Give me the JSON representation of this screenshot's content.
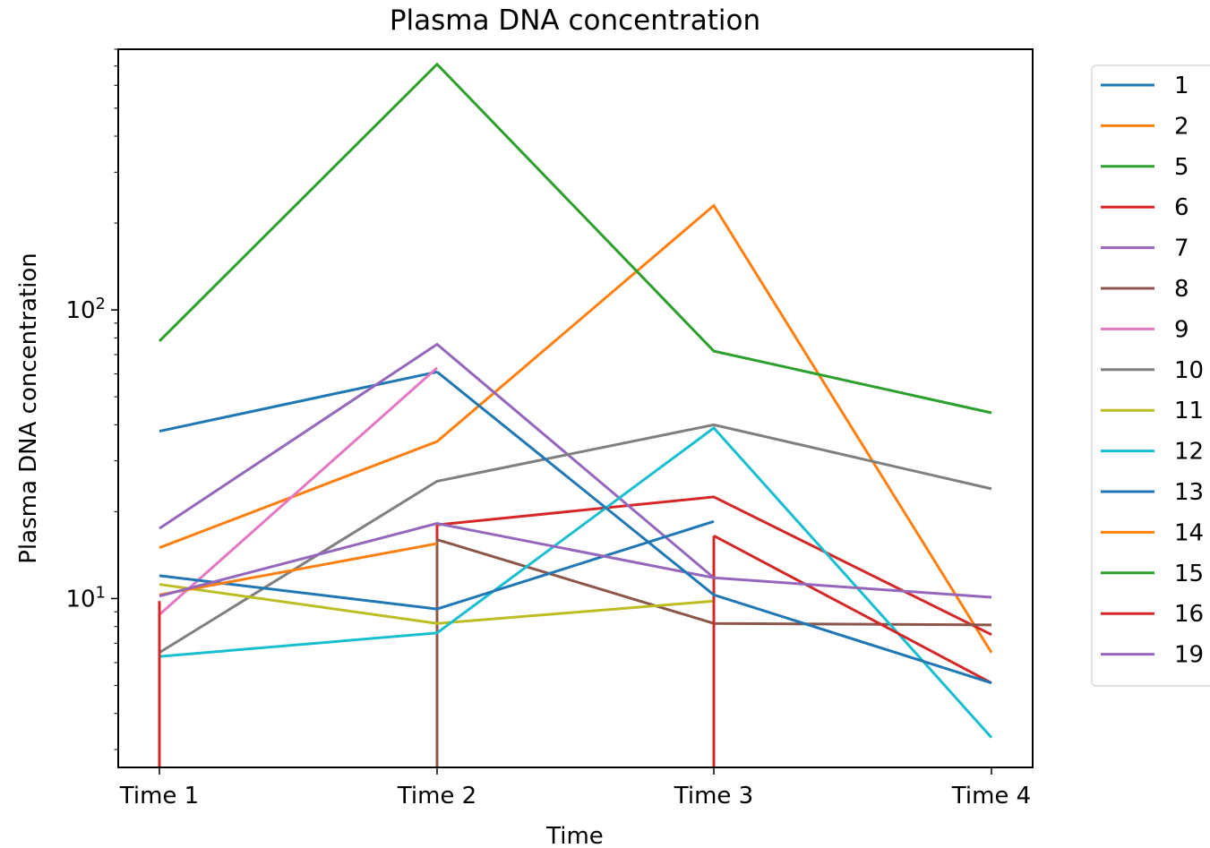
{
  "chart_data": {
    "type": "line",
    "title": "Plasma DNA concentration",
    "xlabel": "Time",
    "ylabel": "Plasma DNA concentration",
    "categories": [
      "Time 1",
      "Time 2",
      "Time 3",
      "Time 4"
    ],
    "yscale": "log",
    "ylim": [
      2.6,
      800
    ],
    "y_ticks": [
      {
        "value": 10,
        "label": "10",
        "exponent": "1"
      },
      {
        "value": 100,
        "label": "10",
        "exponent": "2"
      }
    ],
    "grid": false,
    "legend": "outside-right",
    "series": [
      {
        "name": "1",
        "color": "#1f77b4",
        "values": [
          38,
          61,
          null,
          null
        ]
      },
      {
        "name": "2",
        "color": "#ff7f0e",
        "values": [
          15,
          35,
          230,
          6.5
        ]
      },
      {
        "name": "5",
        "color": "#2ca02c",
        "values": [
          78,
          710,
          72,
          44
        ]
      },
      {
        "name": "6",
        "color": "#d62728",
        "values": [
          null,
          18,
          22.5,
          7.5
        ],
        "drops": [
          false,
          true,
          false,
          false
        ]
      },
      {
        "name": "7",
        "color": "#9467bd",
        "values": [
          17.5,
          76,
          11.8,
          null
        ]
      },
      {
        "name": "8",
        "color": "#8c564b",
        "values": [
          null,
          16,
          8.2,
          8.1
        ],
        "drops": [
          false,
          true,
          false,
          false
        ]
      },
      {
        "name": "9",
        "color": "#e377c2",
        "values": [
          8.8,
          63,
          null,
          null
        ]
      },
      {
        "name": "10",
        "color": "#7f7f7f",
        "values": [
          6.5,
          25.5,
          40,
          24
        ]
      },
      {
        "name": "11",
        "color": "#bcbd22",
        "values": [
          11.2,
          8.2,
          9.8,
          null
        ]
      },
      {
        "name": "12",
        "color": "#17becf",
        "values": [
          6.3,
          7.6,
          39,
          3.3
        ]
      },
      {
        "name": "13",
        "color": "#1f77b4",
        "values": [
          12,
          9.2,
          18.5,
          null
        ]
      },
      {
        "name": "14",
        "color": "#ff7f0e",
        "values": [
          10.3,
          15.5,
          null,
          null
        ]
      },
      {
        "name": "15",
        "color": "#2ca02c",
        "values": [
          null,
          null,
          null,
          null
        ]
      },
      {
        "name": "16",
        "color": "#d62728",
        "values": [
          9.8,
          null,
          16.5,
          5.1
        ],
        "drops": [
          true,
          false,
          true,
          false
        ]
      },
      {
        "name": "19",
        "color": "#9467bd",
        "values": [
          10.2,
          18.2,
          11.8,
          10.1
        ]
      }
    ],
    "extra_segments": [
      {
        "series": "1",
        "color": "#1f77b4",
        "values": [
          null,
          61,
          10.3,
          5.1
        ]
      }
    ]
  }
}
